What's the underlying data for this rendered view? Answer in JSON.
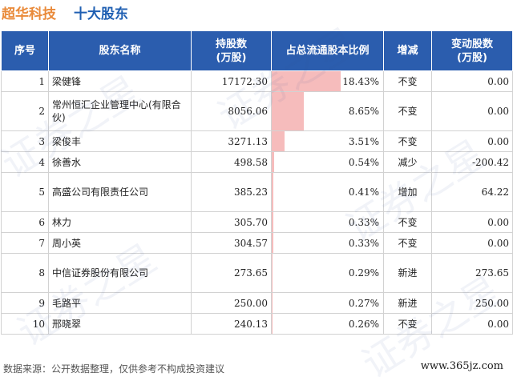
{
  "header": {
    "company": "超华科技",
    "section": "十大股东"
  },
  "columns": {
    "index": "序号",
    "name": "股东名称",
    "shares": "持股数\n(万股)",
    "ratio": "占总流通股本比例",
    "action": "增减",
    "change": "变动股数\n(万股)"
  },
  "colors": {
    "header_bg": "#2b5dae",
    "bar": "#f6bcbc",
    "increase": "#e02020",
    "decrease": "#18a018",
    "company": "#e98a3a",
    "section": "#1f5fb2"
  },
  "rows": [
    {
      "index": "1",
      "name": "梁健锋",
      "shares": "17172.30",
      "ratio": "18.43%",
      "ratio_value": 18.43,
      "action": "不变",
      "change": "0.00"
    },
    {
      "index": "2",
      "name": "常州恒汇企业管理中心(有限合伙)",
      "shares": "8056.06",
      "ratio": "8.65%",
      "ratio_value": 8.65,
      "action": "不变",
      "change": "0.00"
    },
    {
      "index": "3",
      "name": "梁俊丰",
      "shares": "3271.13",
      "ratio": "3.51%",
      "ratio_value": 3.51,
      "action": "不变",
      "change": "0.00"
    },
    {
      "index": "4",
      "name": "徐善水",
      "shares": "498.58",
      "ratio": "0.54%",
      "ratio_value": 0.54,
      "action": "减少",
      "change": "-200.42"
    },
    {
      "index": "5",
      "name": "高盛公司有限责任公司",
      "shares": "385.23",
      "ratio": "0.41%",
      "ratio_value": 0.41,
      "action": "增加",
      "change": "64.22"
    },
    {
      "index": "6",
      "name": "林力",
      "shares": "305.70",
      "ratio": "0.33%",
      "ratio_value": 0.33,
      "action": "不变",
      "change": "0.00"
    },
    {
      "index": "7",
      "name": "周小英",
      "shares": "304.57",
      "ratio": "0.33%",
      "ratio_value": 0.33,
      "action": "不变",
      "change": "0.00"
    },
    {
      "index": "8",
      "name": "中信证券股份有限公司",
      "shares": "273.65",
      "ratio": "0.29%",
      "ratio_value": 0.29,
      "action": "新进",
      "change": "273.65"
    },
    {
      "index": "9",
      "name": "毛路平",
      "shares": "250.00",
      "ratio": "0.27%",
      "ratio_value": 0.27,
      "action": "新进",
      "change": "250.00"
    },
    {
      "index": "10",
      "name": "邢晓翠",
      "shares": "240.13",
      "ratio": "0.26%",
      "ratio_value": 0.26,
      "action": "不变",
      "change": "0.00"
    }
  ],
  "footer": {
    "source": "数据来源：公开数据整理，仅供参考不构成投资建议",
    "site": "www.365jz.com"
  },
  "watermark": "证券之星"
}
